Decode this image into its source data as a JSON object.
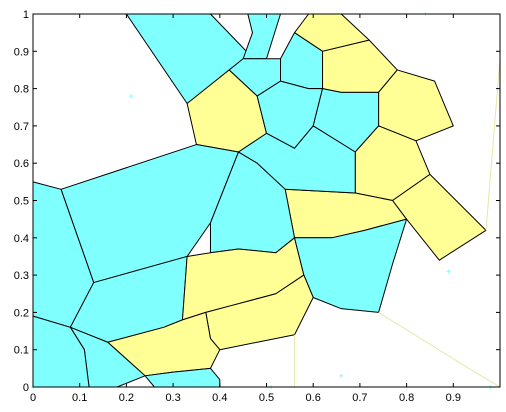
{
  "chart_data": {
    "type": "voronoi",
    "title": "",
    "xlabel": "",
    "ylabel": "",
    "xlim": [
      0,
      1
    ],
    "ylim": [
      0,
      1
    ],
    "grid": false,
    "x_ticks": [
      "0",
      "0.1",
      "0.2",
      "0.3",
      "0.4",
      "0.5",
      "0.6",
      "0.7",
      "0.8",
      "0.9"
    ],
    "y_ticks": [
      "0",
      "0.1",
      "0.2",
      "0.3",
      "0.4",
      "0.5",
      "0.6",
      "0.7",
      "0.8",
      "0.9",
      "1"
    ],
    "colors": {
      "cyan": "#80ffff",
      "yellow": "#ffff96",
      "edge": "#000000",
      "seed": "#80ffff",
      "faint_edge": "#e6e6a8"
    },
    "cells": [
      {
        "color": "cyan",
        "polygon": [
          [
            0.38,
            1
          ],
          [
            0.48,
            0.87
          ],
          [
            0.43,
            0.85
          ],
          [
            0.33,
            0.76
          ],
          [
            0.2,
            1
          ]
        ]
      },
      {
        "color": "cyan",
        "polygon": [
          [
            0.46,
            1
          ],
          [
            0.47,
            0.95
          ],
          [
            0.45,
            0.88
          ],
          [
            0.5,
            0.88
          ],
          [
            0.53,
            1
          ]
        ]
      },
      {
        "color": "yellow",
        "polygon": [
          [
            0.59,
            1
          ],
          [
            0.56,
            0.95
          ],
          [
            0.62,
            0.9
          ],
          [
            0.72,
            0.93
          ],
          [
            0.66,
            1
          ]
        ]
      },
      {
        "color": "cyan",
        "polygon": [
          [
            0.53,
            0.88
          ],
          [
            0.56,
            0.95
          ],
          [
            0.62,
            0.9
          ],
          [
            0.62,
            0.8
          ],
          [
            0.59,
            0.8
          ],
          [
            0.53,
            0.82
          ]
        ]
      },
      {
        "color": "cyan",
        "polygon": [
          [
            0.45,
            0.88
          ],
          [
            0.53,
            0.88
          ],
          [
            0.53,
            0.82
          ],
          [
            0.48,
            0.78
          ],
          [
            0.42,
            0.85
          ]
        ]
      },
      {
        "color": "yellow",
        "polygon": [
          [
            0.33,
            0.76
          ],
          [
            0.42,
            0.85
          ],
          [
            0.48,
            0.78
          ],
          [
            0.5,
            0.68
          ],
          [
            0.44,
            0.63
          ],
          [
            0.35,
            0.65
          ]
        ]
      },
      {
        "color": "yellow",
        "polygon": [
          [
            0.62,
            0.9
          ],
          [
            0.72,
            0.93
          ],
          [
            0.78,
            0.85
          ],
          [
            0.74,
            0.79
          ],
          [
            0.66,
            0.79
          ],
          [
            0.62,
            0.8
          ]
        ]
      },
      {
        "color": "yellow",
        "polygon": [
          [
            0.74,
            0.79
          ],
          [
            0.78,
            0.85
          ],
          [
            0.86,
            0.82
          ],
          [
            0.9,
            0.7
          ],
          [
            0.82,
            0.66
          ],
          [
            0.74,
            0.7
          ]
        ]
      },
      {
        "color": "cyan",
        "polygon": [
          [
            0.48,
            0.78
          ],
          [
            0.53,
            0.82
          ],
          [
            0.59,
            0.8
          ],
          [
            0.62,
            0.8
          ],
          [
            0.6,
            0.7
          ],
          [
            0.56,
            0.64
          ],
          [
            0.5,
            0.68
          ]
        ]
      },
      {
        "color": "cyan",
        "polygon": [
          [
            0.62,
            0.8
          ],
          [
            0.66,
            0.79
          ],
          [
            0.74,
            0.79
          ],
          [
            0.74,
            0.7
          ],
          [
            0.69,
            0.63
          ],
          [
            0.6,
            0.7
          ]
        ]
      },
      {
        "color": "yellow",
        "polygon": [
          [
            0.69,
            0.63
          ],
          [
            0.74,
            0.7
          ],
          [
            0.82,
            0.66
          ],
          [
            0.85,
            0.57
          ],
          [
            0.77,
            0.5
          ],
          [
            0.69,
            0.52
          ]
        ]
      },
      {
        "color": "yellow",
        "polygon": [
          [
            0.54,
            0.53
          ],
          [
            0.69,
            0.52
          ],
          [
            0.77,
            0.5
          ],
          [
            0.8,
            0.45
          ],
          [
            0.71,
            0.42
          ],
          [
            0.64,
            0.4
          ],
          [
            0.56,
            0.4
          ]
        ]
      },
      {
        "color": "yellow",
        "polygon": [
          [
            0.77,
            0.5
          ],
          [
            0.85,
            0.57
          ],
          [
            0.97,
            0.42
          ],
          [
            0.87,
            0.34
          ],
          [
            0.8,
            0.45
          ]
        ]
      },
      {
        "color": "cyan",
        "polygon": [
          [
            0.44,
            0.63
          ],
          [
            0.5,
            0.68
          ],
          [
            0.56,
            0.64
          ],
          [
            0.6,
            0.7
          ],
          [
            0.69,
            0.63
          ],
          [
            0.69,
            0.52
          ],
          [
            0.54,
            0.53
          ],
          [
            0.48,
            0.6
          ]
        ]
      },
      {
        "color": "cyan",
        "polygon": [
          [
            0.06,
            0.53
          ],
          [
            0.35,
            0.65
          ],
          [
            0.44,
            0.63
          ],
          [
            0.38,
            0.44
          ],
          [
            0.33,
            0.35
          ],
          [
            0.13,
            0.28
          ]
        ]
      },
      {
        "color": "cyan",
        "polygon": [
          [
            0.38,
            0.44
          ],
          [
            0.44,
            0.63
          ],
          [
            0.48,
            0.6
          ],
          [
            0.54,
            0.53
          ],
          [
            0.56,
            0.4
          ],
          [
            0.52,
            0.36
          ],
          [
            0.44,
            0.37
          ],
          [
            0.38,
            0.36
          ]
        ]
      },
      {
        "color": "cyan",
        "polygon": [
          [
            0.0,
            0.55
          ],
          [
            0.06,
            0.53
          ],
          [
            0.13,
            0.28
          ],
          [
            0.08,
            0.16
          ],
          [
            0.0,
            0.19
          ]
        ]
      },
      {
        "color": "cyan",
        "polygon": [
          [
            0.08,
            0.16
          ],
          [
            0.13,
            0.28
          ],
          [
            0.33,
            0.35
          ],
          [
            0.32,
            0.18
          ],
          [
            0.28,
            0.16
          ],
          [
            0.16,
            0.12
          ]
        ]
      },
      {
        "color": "yellow",
        "polygon": [
          [
            0.33,
            0.35
          ],
          [
            0.38,
            0.36
          ],
          [
            0.44,
            0.37
          ],
          [
            0.52,
            0.36
          ],
          [
            0.56,
            0.4
          ],
          [
            0.58,
            0.3
          ],
          [
            0.52,
            0.25
          ],
          [
            0.43,
            0.22
          ],
          [
            0.37,
            0.2
          ],
          [
            0.32,
            0.18
          ]
        ]
      },
      {
        "color": "cyan",
        "polygon": [
          [
            0.56,
            0.4
          ],
          [
            0.64,
            0.4
          ],
          [
            0.71,
            0.42
          ],
          [
            0.8,
            0.45
          ],
          [
            0.77,
            0.33
          ],
          [
            0.74,
            0.2
          ],
          [
            0.66,
            0.21
          ],
          [
            0.6,
            0.24
          ],
          [
            0.58,
            0.3
          ]
        ]
      },
      {
        "color": "yellow",
        "polygon": [
          [
            0.37,
            0.2
          ],
          [
            0.43,
            0.22
          ],
          [
            0.52,
            0.25
          ],
          [
            0.58,
            0.3
          ],
          [
            0.6,
            0.24
          ],
          [
            0.56,
            0.14
          ],
          [
            0.48,
            0.12
          ],
          [
            0.4,
            0.1
          ],
          [
            0.38,
            0.13
          ]
        ]
      },
      {
        "color": "yellow",
        "polygon": [
          [
            0.16,
            0.12
          ],
          [
            0.28,
            0.16
          ],
          [
            0.32,
            0.18
          ],
          [
            0.37,
            0.2
          ],
          [
            0.38,
            0.13
          ],
          [
            0.4,
            0.1
          ],
          [
            0.38,
            0.05
          ],
          [
            0.3,
            0.04
          ],
          [
            0.24,
            0.03
          ]
        ]
      },
      {
        "color": "cyan",
        "polygon": [
          [
            0.08,
            0.16
          ],
          [
            0.16,
            0.12
          ],
          [
            0.24,
            0.03
          ],
          [
            0.18,
            0.0
          ],
          [
            0.12,
            0.0
          ],
          [
            0.11,
            0.1
          ]
        ]
      },
      {
        "color": "cyan",
        "polygon": [
          [
            0.24,
            0.03
          ],
          [
            0.3,
            0.04
          ],
          [
            0.38,
            0.05
          ],
          [
            0.4,
            0.02
          ],
          [
            0.4,
            0.0
          ],
          [
            0.26,
            0.0
          ]
        ]
      },
      {
        "color": "cyan",
        "polygon": [
          [
            0.0,
            0.19
          ],
          [
            0.08,
            0.16
          ],
          [
            0.11,
            0.1
          ],
          [
            0.12,
            0.0
          ],
          [
            0.0,
            0.0
          ]
        ]
      }
    ],
    "faint_edges": [
      [
        [
          0.97,
          0.42
        ],
        [
          1.0,
          0.88
        ]
      ],
      [
        [
          0.74,
          0.2
        ],
        [
          0.92,
          0.06
        ]
      ],
      [
        [
          0.56,
          0.14
        ],
        [
          0.56,
          0.0
        ]
      ],
      [
        [
          0.92,
          0.06
        ],
        [
          1.0,
          0.0
        ]
      ]
    ],
    "seed_points": [
      [
        0.21,
        0.78
      ],
      [
        0.47,
        0.93
      ],
      [
        0.84,
        1.0
      ],
      [
        0.89,
        0.31
      ],
      [
        0.66,
        0.03
      ],
      [
        0.51,
        0.0
      ],
      [
        0.0,
        0.0
      ],
      [
        0.98,
        0.0
      ]
    ]
  }
}
